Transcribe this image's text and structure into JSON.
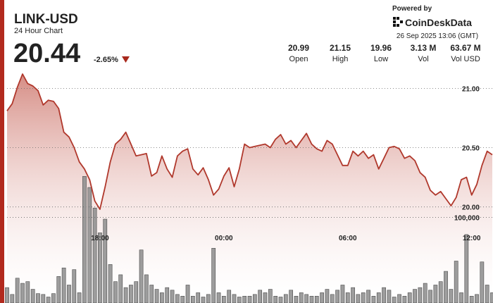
{
  "header": {
    "symbol": "LINK-USD",
    "subtitle": "24 Hour Chart",
    "price": "20.44",
    "change": "-2.65%"
  },
  "stats": [
    {
      "value": "20.99",
      "label": "Open"
    },
    {
      "value": "21.15",
      "label": "High"
    },
    {
      "value": "19.96",
      "label": "Low"
    },
    {
      "value": "3.13 M",
      "label": "Vol"
    },
    {
      "value": "63.67 M",
      "label": "Vol USD"
    }
  ],
  "branding": {
    "powered_by": "Powered by",
    "brand": "CoinDeskData",
    "timestamp": "26 Sep 2025 13:06 (GMT)"
  },
  "chart_data": {
    "type": "line",
    "categories": [
      null,
      null,
      null,
      null,
      null,
      null,
      null,
      null,
      null,
      null,
      null,
      null,
      null,
      null,
      null,
      null,
      null,
      null,
      "18:00",
      null,
      null,
      null,
      null,
      null,
      null,
      null,
      null,
      null,
      null,
      null,
      null,
      null,
      null,
      null,
      null,
      null,
      null,
      null,
      null,
      null,
      null,
      null,
      "00:00",
      null,
      null,
      null,
      null,
      null,
      null,
      null,
      null,
      null,
      null,
      null,
      null,
      null,
      null,
      null,
      null,
      null,
      null,
      null,
      null,
      null,
      null,
      null,
      "06:00",
      null,
      null,
      null,
      null,
      null,
      null,
      null,
      null,
      null,
      null,
      null,
      null,
      null,
      null,
      null,
      null,
      null,
      null,
      null,
      null,
      null,
      null,
      null,
      "12:00",
      null,
      null,
      null,
      null
    ],
    "series": [
      {
        "color": "#b0382c",
        "values": [
          20.81,
          20.87,
          21.01,
          21.12,
          21.04,
          21.02,
          20.98,
          20.86,
          20.9,
          20.89,
          20.83,
          20.63,
          20.59,
          20.5,
          20.38,
          20.32,
          20.23,
          20.05,
          19.98,
          20.17,
          20.38,
          20.53,
          20.57,
          20.63,
          20.53,
          20.43,
          20.44,
          20.45,
          20.26,
          20.29,
          20.43,
          20.32,
          20.25,
          20.43,
          20.47,
          20.49,
          20.32,
          20.27,
          20.33,
          20.23,
          20.1,
          20.15,
          20.26,
          20.33,
          20.17,
          20.32,
          20.53,
          20.5,
          20.51,
          20.52,
          20.53,
          20.5,
          20.57,
          20.61,
          20.53,
          20.56,
          20.5,
          20.56,
          20.62,
          20.53,
          20.49,
          20.47,
          20.56,
          20.53,
          20.44,
          20.35,
          20.35,
          20.47,
          20.43,
          20.47,
          20.41,
          20.44,
          20.32,
          20.41,
          20.5,
          20.51,
          20.49,
          20.41,
          20.43,
          20.39,
          20.29,
          20.25,
          20.14,
          20.1,
          20.13,
          20.07,
          20.01,
          20.08,
          20.23,
          20.25,
          20.1,
          20.19,
          20.35,
          20.47,
          20.44
        ]
      },
      {
        "type": "bar",
        "axis": "y2",
        "color": "#8c8c8c",
        "values": [
          18000,
          10000,
          29000,
          23000,
          25000,
          16000,
          11000,
          10000,
          7000,
          11000,
          31000,
          41000,
          21000,
          39000,
          12000,
          148000,
          135000,
          111000,
          82000,
          98000,
          45000,
          25000,
          33000,
          18000,
          21000,
          25000,
          62000,
          33000,
          21000,
          16000,
          12000,
          18000,
          15000,
          10000,
          8000,
          21000,
          8000,
          12000,
          7000,
          10000,
          64000,
          12000,
          8000,
          15000,
          10000,
          7000,
          8000,
          8000,
          10000,
          15000,
          12000,
          16000,
          8000,
          7000,
          10000,
          15000,
          8000,
          12000,
          10000,
          8000,
          8000,
          12000,
          16000,
          10000,
          15000,
          21000,
          12000,
          18000,
          10000,
          12000,
          15000,
          8000,
          12000,
          18000,
          15000,
          7000,
          10000,
          8000,
          12000,
          16000,
          18000,
          23000,
          15000,
          21000,
          25000,
          37000,
          16000,
          49000,
          12000,
          80000,
          8000,
          10000,
          48000,
          21000,
          12000
        ]
      }
    ],
    "ylim": [
      19.19,
      21.21
    ],
    "yticks": [
      {
        "value": 20,
        "label": "20.00"
      },
      {
        "value": 20.5,
        "label": "20.50"
      },
      {
        "value": 21,
        "label": "21.00"
      }
    ],
    "y2lim": [
      0,
      280000
    ],
    "y2ticks": [
      {
        "value": 100000,
        "label": "100,000"
      }
    ],
    "grid": true
  }
}
